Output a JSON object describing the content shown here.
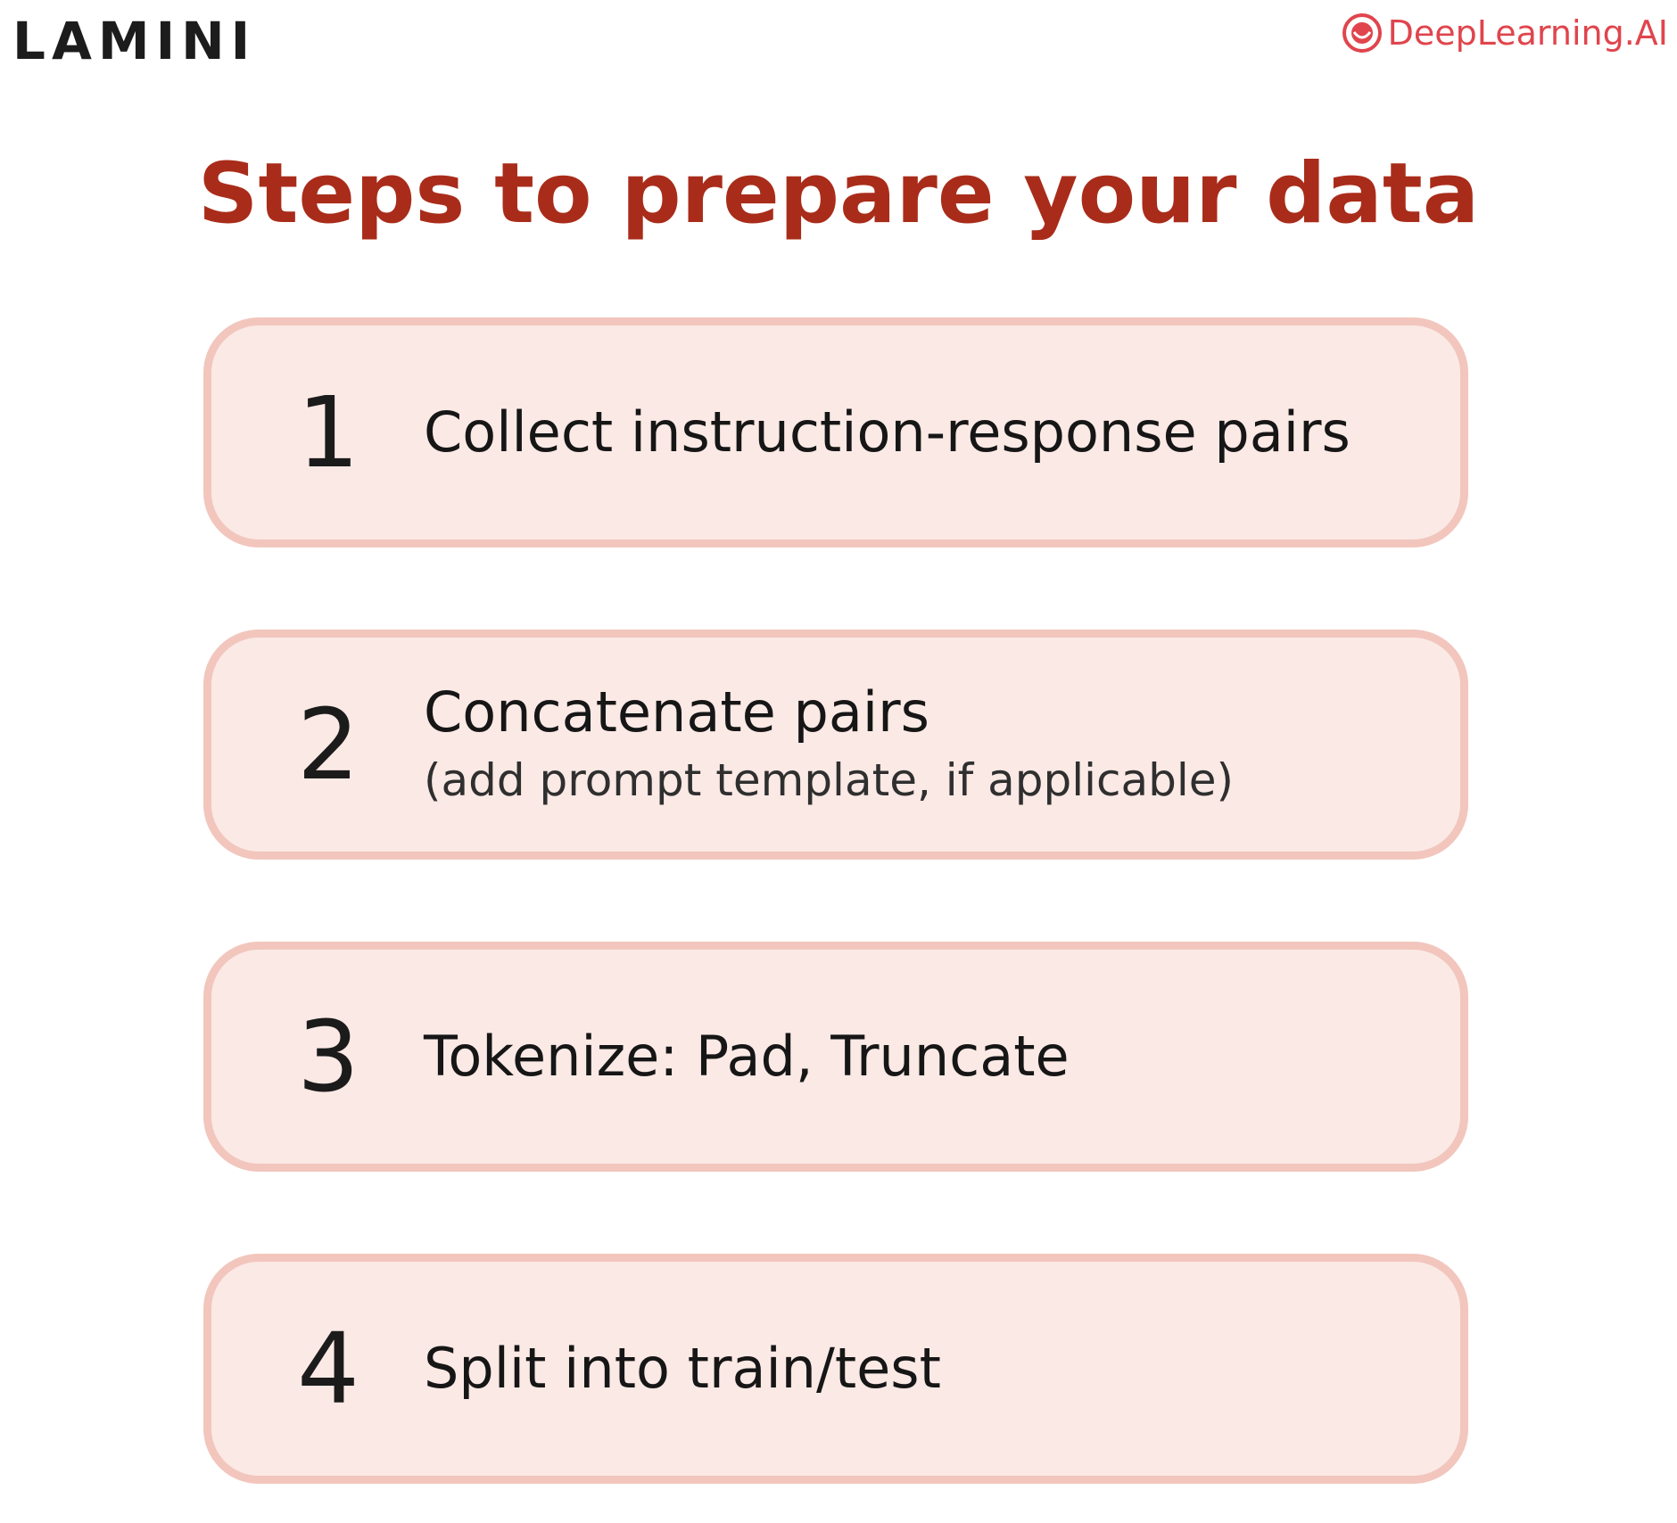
{
  "header": {
    "brand_left": "LAMINI",
    "brand_right": "DeepLearning.AI",
    "brand_right_icon": "deeplearning-logo-icon",
    "brand_right_color": "#e0454d"
  },
  "title": "Steps to prepare your data",
  "title_color": "#a92c1a",
  "steps": [
    {
      "number": "1",
      "title": "Collect instruction-response pairs",
      "subtitle": ""
    },
    {
      "number": "2",
      "title": "Concatenate pairs",
      "subtitle": "(add prompt template, if applicable)"
    },
    {
      "number": "3",
      "title": "Tokenize: Pad, Truncate",
      "subtitle": ""
    },
    {
      "number": "4",
      "title": "Split into train/test",
      "subtitle": ""
    }
  ],
  "card_fill": "#fbe9e5",
  "card_border": "#f2c6bd"
}
